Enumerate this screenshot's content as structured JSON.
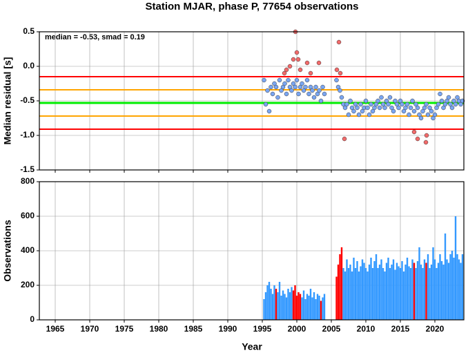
{
  "chart_data": [
    {
      "type": "scatter",
      "title": "Station MJAR, phase P, 77654 observations",
      "y_label": "Median residual [s]",
      "annotation": "median = -0.53, smad = 0.19",
      "xlim": [
        1962.7,
        2024.2
      ],
      "xticks": [
        1965,
        1970,
        1975,
        1980,
        1985,
        1990,
        1995,
        2000,
        2005,
        2010,
        2015,
        2020
      ],
      "ylim": [
        -1.5,
        0.5
      ],
      "yticks": [
        0.5,
        {
          "value": 0,
          "label": "0.0"
        },
        -0.5,
        {
          "value": -1,
          "label": "-1.0"
        },
        -1.5
      ],
      "grid": true,
      "hlines": [
        {
          "value": -0.15,
          "color": "#ff0000"
        },
        {
          "value": -0.34,
          "color": "#ffa500"
        },
        {
          "value": -0.53,
          "color": "#00ee00"
        },
        {
          "value": -0.72,
          "color": "#ffa500"
        },
        {
          "value": -0.91,
          "color": "#ff0000"
        }
      ],
      "x": [
        1995.25,
        1995.5,
        1995.75,
        1996,
        1996.25,
        1996.5,
        1996.75,
        1997,
        1997.25,
        1997.5,
        1997.75,
        1998,
        1998.25,
        1998.5,
        1998.75,
        1999,
        1999.25,
        1999.5,
        1999.75,
        2000,
        2000.25,
        2000.5,
        2000.75,
        2001,
        2001.25,
        2001.5,
        2001.75,
        2002,
        2002.25,
        2002.5,
        2002.75,
        2003,
        2003.25,
        2003.5,
        2003.75,
        2004,
        2004.25,
        2004.5,
        2004.75,
        2005,
        2005.25,
        2005.5,
        2005.75,
        2006,
        2006.25,
        2006.5,
        2006.75,
        2007,
        2007.25,
        2007.5,
        2007.75,
        2008,
        2008.25,
        2008.5,
        2008.75,
        2009,
        2009.25,
        2009.5,
        2009.75,
        2010,
        2010.25,
        2010.5,
        2010.75,
        2011,
        2011.25,
        2011.5,
        2011.75,
        2012,
        2012.25,
        2012.5,
        2012.75,
        2013,
        2013.25,
        2013.5,
        2013.75,
        2014,
        2014.25,
        2014.5,
        2014.75,
        2015,
        2015.25,
        2015.5,
        2015.75,
        2016,
        2016.25,
        2016.5,
        2016.75,
        2017,
        2017.25,
        2017.5,
        2017.75,
        2018,
        2018.25,
        2018.5,
        2018.75,
        2019,
        2019.25,
        2019.5,
        2019.75,
        2020,
        2020.25,
        2020.5,
        2020.75,
        2021,
        2021.25,
        2021.5,
        2021.75,
        2022,
        2022.25,
        2022.5,
        2022.75,
        2023,
        2023.25,
        2023.5,
        2023.75,
        2024
      ],
      "series": [
        {
          "color": "#7aa6f2",
          "values": [
            -0.2,
            -0.55,
            -0.35,
            -0.65,
            -0.3,
            -0.4,
            -0.25,
            -0.3,
            -0.45,
            -0.2,
            -0.35,
            -0.3,
            -0.25,
            -0.4,
            -0.2,
            -0.3,
            -0.35,
            -0.25,
            -0.3,
            -0.2,
            -0.4,
            -0.3,
            -0.25,
            -0.35,
            -0.3,
            -0.2,
            -0.4,
            -0.3,
            -0.35,
            -0.45,
            -0.3,
            -0.4,
            -0.35,
            -0.5,
            -0.3,
            -0.4,
            null,
            null,
            null,
            null,
            null,
            null,
            -0.2,
            -0.3,
            -0.35,
            -0.45,
            -0.55,
            -0.6,
            -0.55,
            -0.7,
            -0.5,
            -0.6,
            -0.65,
            -0.55,
            -0.6,
            -0.7,
            -0.55,
            -0.65,
            -0.6,
            -0.5,
            -0.6,
            -0.7,
            -0.55,
            -0.65,
            -0.6,
            -0.55,
            -0.5,
            -0.6,
            -0.45,
            -0.55,
            -0.6,
            -0.5,
            -0.55,
            -0.45,
            -0.6,
            -0.65,
            -0.5,
            -0.55,
            -0.6,
            -0.5,
            -0.55,
            -0.65,
            -0.6,
            -0.55,
            -0.7,
            -0.6,
            -0.5,
            -0.65,
            -0.55,
            -0.6,
            -0.7,
            -0.75,
            -0.65,
            -0.6,
            -0.55,
            -0.7,
            -0.6,
            -0.65,
            -0.75,
            -0.7,
            -0.6,
            -0.55,
            -0.4,
            -0.5,
            -0.6,
            -0.55,
            -0.5,
            -0.45,
            -0.55,
            -0.6,
            -0.5,
            -0.55,
            -0.45,
            -0.5,
            -0.55,
            -0.5
          ]
        },
        {
          "color": "#f26a6a",
          "x": [
            1998.2,
            1998.5,
            1999.0,
            1999.5,
            1999.8,
            2000.0,
            2000.2,
            2000.5,
            2001.5,
            2002.0,
            2003.2,
            2005.8,
            2006.1,
            2006.3,
            2006.9,
            2017.0,
            2017.5,
            2018.7,
            2018.8
          ],
          "values": [
            -0.1,
            -0.05,
            0.0,
            0.1,
            0.5,
            0.2,
            0.1,
            -0.05,
            0.05,
            -0.1,
            0.05,
            -0.05,
            0.35,
            -0.1,
            -1.05,
            -0.95,
            -1.05,
            -1.1,
            -1.0
          ]
        }
      ]
    },
    {
      "type": "bar",
      "y_label": "Observations",
      "x_label": "Year",
      "xlim": [
        1962.7,
        2024.2
      ],
      "xticks": [
        1965,
        1970,
        1975,
        1980,
        1985,
        1990,
        1995,
        2000,
        2005,
        2010,
        2015,
        2020
      ],
      "ylim": [
        0,
        800
      ],
      "yticks": [
        0,
        200,
        400,
        600,
        800
      ],
      "grid": true,
      "x": [
        1995.25,
        1995.5,
        1995.75,
        1996,
        1996.25,
        1996.5,
        1996.75,
        1997,
        1997.25,
        1997.5,
        1997.75,
        1998,
        1998.25,
        1998.5,
        1998.75,
        1999,
        1999.25,
        1999.5,
        1999.75,
        2000,
        2000.25,
        2000.5,
        2000.75,
        2001,
        2001.25,
        2001.5,
        2001.75,
        2002,
        2002.25,
        2002.5,
        2002.75,
        2003,
        2003.25,
        2003.5,
        2003.75,
        2004,
        2004.25,
        2004.5,
        2004.75,
        2005,
        2005.25,
        2005.5,
        2005.75,
        2006,
        2006.25,
        2006.5,
        2006.75,
        2007,
        2007.25,
        2007.5,
        2007.75,
        2008,
        2008.25,
        2008.5,
        2008.75,
        2009,
        2009.25,
        2009.5,
        2009.75,
        2010,
        2010.25,
        2010.5,
        2010.75,
        2011,
        2011.25,
        2011.5,
        2011.75,
        2012,
        2012.25,
        2012.5,
        2012.75,
        2013,
        2013.25,
        2013.5,
        2013.75,
        2014,
        2014.25,
        2014.5,
        2014.75,
        2015,
        2015.25,
        2015.5,
        2015.75,
        2016,
        2016.25,
        2016.5,
        2016.75,
        2017,
        2017.25,
        2017.5,
        2017.75,
        2018,
        2018.25,
        2018.5,
        2018.75,
        2019,
        2019.25,
        2019.5,
        2019.75,
        2020,
        2020.25,
        2020.5,
        2020.75,
        2021,
        2021.25,
        2021.5,
        2021.75,
        2022,
        2022.25,
        2022.5,
        2022.75,
        2023,
        2023.25,
        2023.5,
        2023.75,
        2024
      ],
      "values": [
        120,
        160,
        200,
        220,
        180,
        150,
        200,
        180,
        160,
        220,
        140,
        170,
        150,
        130,
        180,
        160,
        190,
        170,
        200,
        140,
        160,
        150,
        130,
        170,
        120,
        150,
        140,
        180,
        130,
        160,
        120,
        150,
        140,
        110,
        130,
        150,
        null,
        null,
        null,
        null,
        null,
        null,
        250,
        320,
        380,
        420,
        300,
        280,
        350,
        300,
        320,
        280,
        360,
        300,
        340,
        280,
        310,
        350,
        330,
        300,
        280,
        320,
        360,
        300,
        340,
        380,
        300,
        320,
        350,
        300,
        280,
        330,
        360,
        300,
        320,
        350,
        290,
        330,
        310,
        300,
        340,
        280,
        320,
        360,
        310,
        300,
        350,
        330,
        300,
        340,
        420,
        320,
        300,
        350,
        330,
        380,
        300,
        320,
        420,
        350,
        300,
        330,
        380,
        340,
        320,
        500,
        350,
        330,
        380,
        400,
        360,
        600,
        380,
        350,
        330,
        380
      ],
      "colors": [
        "#3399ff",
        "#3399ff",
        "#3399ff",
        "#3399ff",
        "#3399ff",
        "#3399ff",
        "#3399ff",
        "#ff0000",
        "#3399ff",
        "#3399ff",
        "#3399ff",
        "#3399ff",
        "#3399ff",
        "#3399ff",
        "#3399ff",
        "#3399ff",
        "#3399ff",
        "#ff0000",
        "#ff0000",
        "#ff0000",
        "#ff0000",
        "#ff0000",
        "#3399ff",
        "#3399ff",
        "#3399ff",
        "#3399ff",
        "#3399ff",
        "#3399ff",
        "#3399ff",
        "#3399ff",
        "#3399ff",
        "#3399ff",
        "#3399ff",
        "#ff0000",
        "#3399ff",
        "#3399ff",
        "#3399ff",
        "#3399ff",
        "#3399ff",
        "#3399ff",
        "#3399ff",
        "#3399ff",
        "#ff0000",
        "#ff0000",
        "#ff0000",
        "#ff0000",
        "#3399ff",
        "#3399ff",
        "#3399ff",
        "#3399ff",
        "#3399ff",
        "#3399ff",
        "#3399ff",
        "#3399ff",
        "#3399ff",
        "#3399ff",
        "#3399ff",
        "#3399ff",
        "#3399ff",
        "#3399ff",
        "#3399ff",
        "#3399ff",
        "#3399ff",
        "#3399ff",
        "#3399ff",
        "#3399ff",
        "#3399ff",
        "#3399ff",
        "#3399ff",
        "#3399ff",
        "#3399ff",
        "#3399ff",
        "#3399ff",
        "#3399ff",
        "#3399ff",
        "#3399ff",
        "#3399ff",
        "#3399ff",
        "#3399ff",
        "#3399ff",
        "#3399ff",
        "#3399ff",
        "#3399ff",
        "#3399ff",
        "#3399ff",
        "#3399ff",
        "#3399ff",
        "#ff0000",
        "#3399ff",
        "#3399ff",
        "#3399ff",
        "#3399ff",
        "#3399ff",
        "#3399ff",
        "#ff0000",
        "#3399ff",
        "#3399ff",
        "#3399ff",
        "#3399ff",
        "#3399ff",
        "#3399ff",
        "#3399ff",
        "#3399ff",
        "#3399ff",
        "#3399ff",
        "#3399ff",
        "#3399ff",
        "#3399ff",
        "#3399ff",
        "#3399ff",
        "#3399ff",
        "#3399ff",
        "#3399ff",
        "#3399ff",
        "#3399ff",
        "#3399ff"
      ]
    }
  ]
}
